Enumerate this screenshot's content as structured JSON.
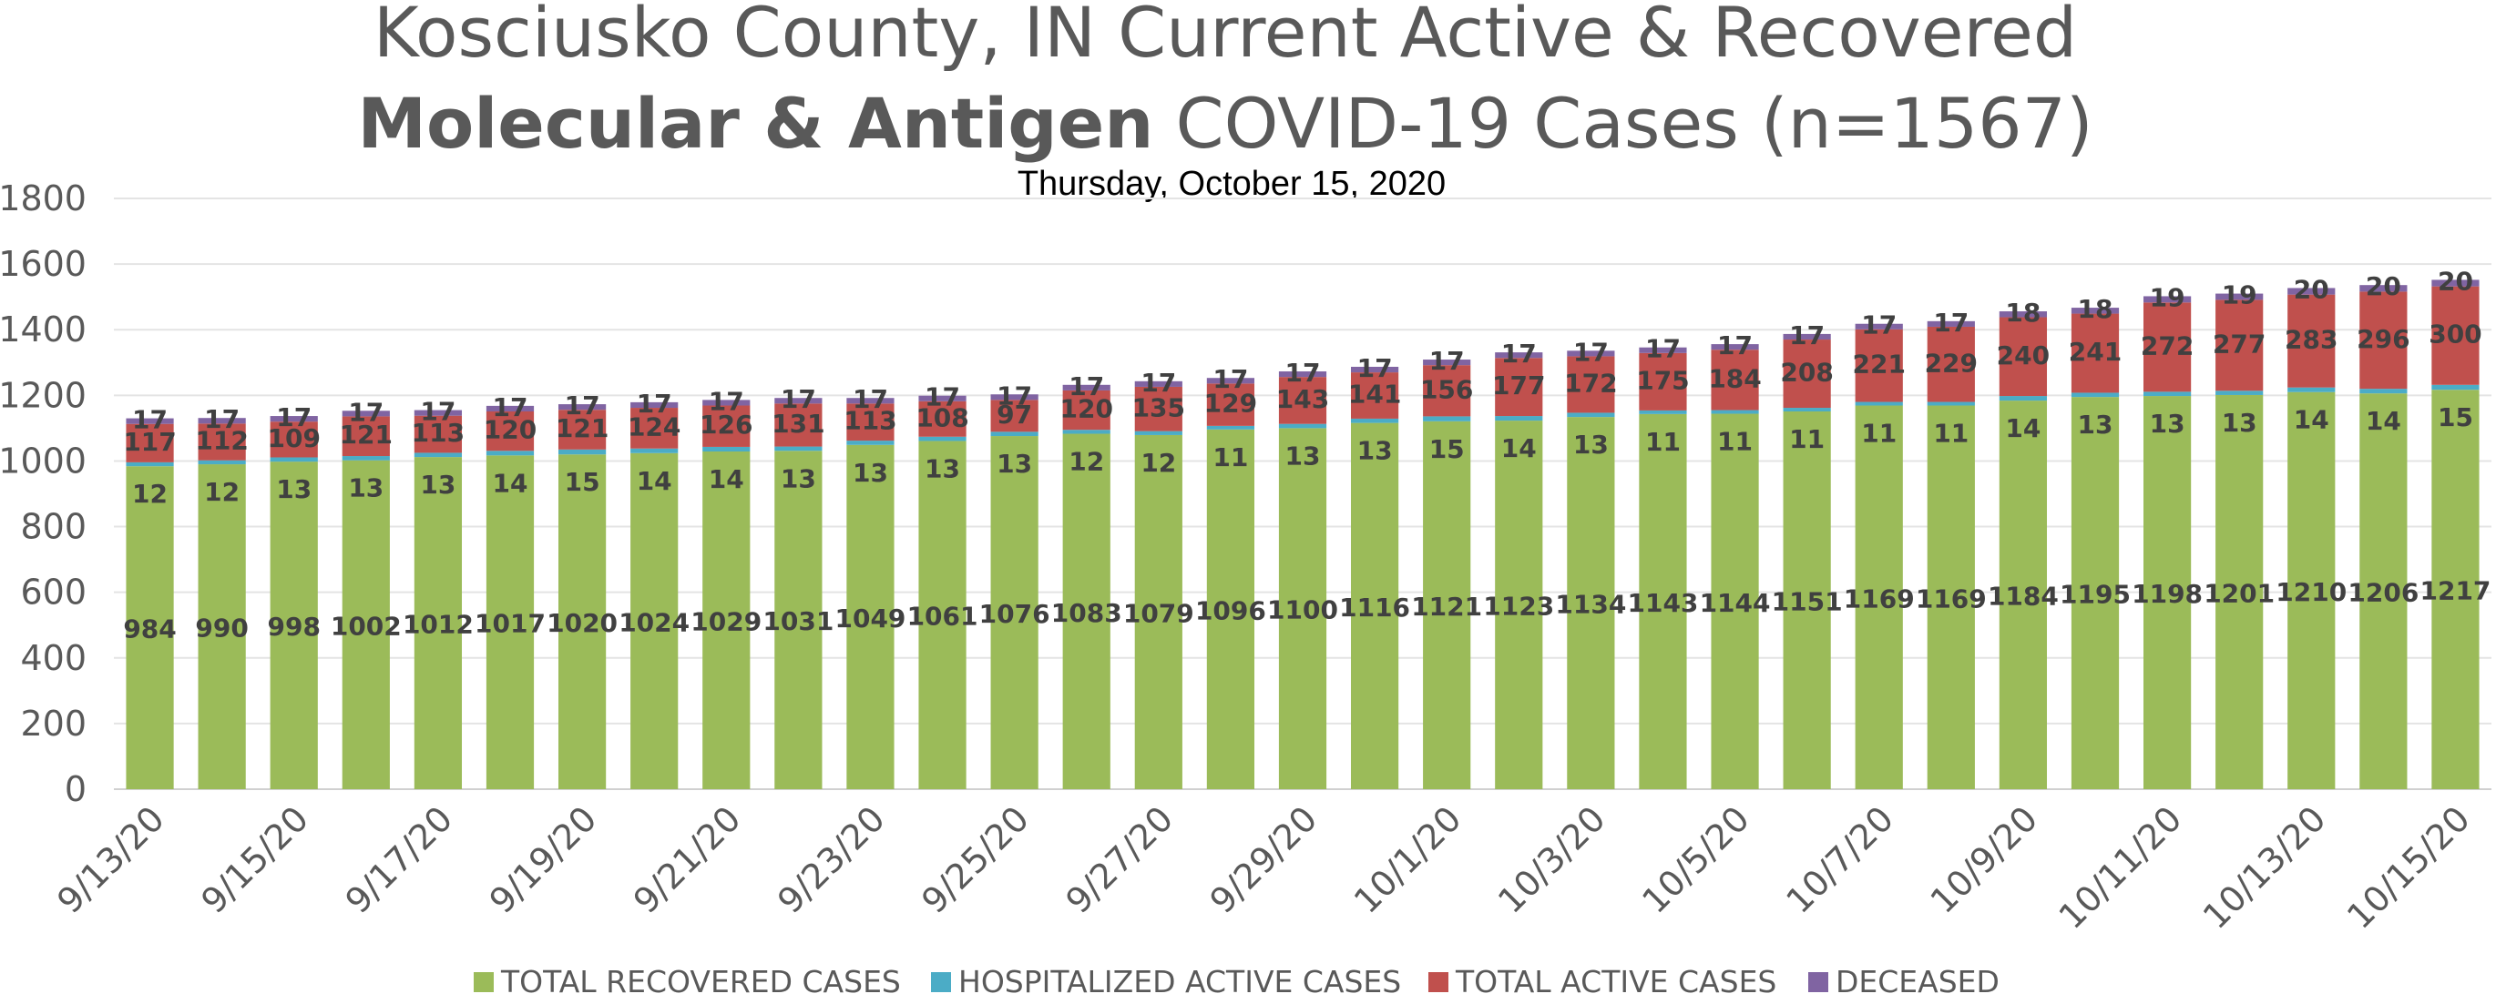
{
  "title_line1": "Kosciusko County, IN Current Active & Recovered",
  "title_line2_bold": "Molecular & Antigen",
  "title_line2_rest": " COVID-19 Cases (n=1567)",
  "date_subtitle": "Thursday, October 15, 2020",
  "colors": {
    "recovered": "#9BBB59",
    "hospitalized": "#4BACC6",
    "active": "#C0504D",
    "deceased": "#8064A2",
    "grid": "#E4E4E4"
  },
  "chart_data": {
    "type": "bar",
    "stacked": true,
    "ylim": [
      0,
      1800
    ],
    "yticks": [
      0,
      200,
      400,
      600,
      800,
      1000,
      1200,
      1400,
      1600,
      1800
    ],
    "grid": true,
    "legend_position": "bottom",
    "categories": [
      "9/13/20",
      "9/14/20",
      "9/15/20",
      "9/16/20",
      "9/17/20",
      "9/18/20",
      "9/19/20",
      "9/20/20",
      "9/21/20",
      "9/22/20",
      "9/23/20",
      "9/24/20",
      "9/25/20",
      "9/26/20",
      "9/27/20",
      "9/28/20",
      "9/29/20",
      "9/30/20",
      "10/1/20",
      "10/2/20",
      "10/3/20",
      "10/4/20",
      "10/5/20",
      "10/6/20",
      "10/7/20",
      "10/8/20",
      "10/9/20",
      "10/10/20",
      "10/11/20",
      "10/12/20",
      "10/13/20",
      "10/14/20",
      "10/15/20"
    ],
    "tick_labels": [
      "9/13/20",
      "9/15/20",
      "9/17/20",
      "9/19/20",
      "9/21/20",
      "9/23/20",
      "9/25/20",
      "9/27/20",
      "9/29/20",
      "10/1/20",
      "10/3/20",
      "10/5/20",
      "10/7/20",
      "10/9/20",
      "10/11/20",
      "10/13/20",
      "10/15/20"
    ],
    "series": [
      {
        "name": "TOTAL RECOVERED CASES",
        "values": [
          984,
          990,
          998,
          1002,
          1012,
          1017,
          1020,
          1024,
          1029,
          1031,
          1049,
          1061,
          1076,
          1083,
          1079,
          1096,
          1100,
          1116,
          1121,
          1123,
          1134,
          1143,
          1144,
          1151,
          1169,
          1169,
          1184,
          1195,
          1198,
          1201,
          1210,
          1206,
          1217
        ]
      },
      {
        "name": "HOSPITALIZED ACTIVE CASES",
        "values": [
          12,
          12,
          13,
          13,
          13,
          14,
          15,
          14,
          14,
          13,
          13,
          13,
          13,
          12,
          12,
          11,
          13,
          13,
          15,
          14,
          13,
          11,
          11,
          11,
          11,
          11,
          14,
          13,
          13,
          13,
          14,
          14,
          15
        ]
      },
      {
        "name": "TOTAL ACTIVE CASES",
        "values": [
          117,
          112,
          109,
          121,
          113,
          120,
          121,
          124,
          126,
          131,
          113,
          108,
          97,
          120,
          135,
          129,
          143,
          141,
          156,
          177,
          172,
          175,
          184,
          208,
          221,
          229,
          240,
          241,
          272,
          277,
          283,
          296,
          300
        ]
      },
      {
        "name": "DECEASED",
        "values": [
          17,
          17,
          17,
          17,
          17,
          17,
          17,
          17,
          17,
          17,
          17,
          17,
          17,
          17,
          17,
          17,
          17,
          17,
          17,
          17,
          17,
          17,
          17,
          17,
          17,
          17,
          18,
          18,
          19,
          19,
          20,
          20,
          20
        ]
      }
    ]
  }
}
